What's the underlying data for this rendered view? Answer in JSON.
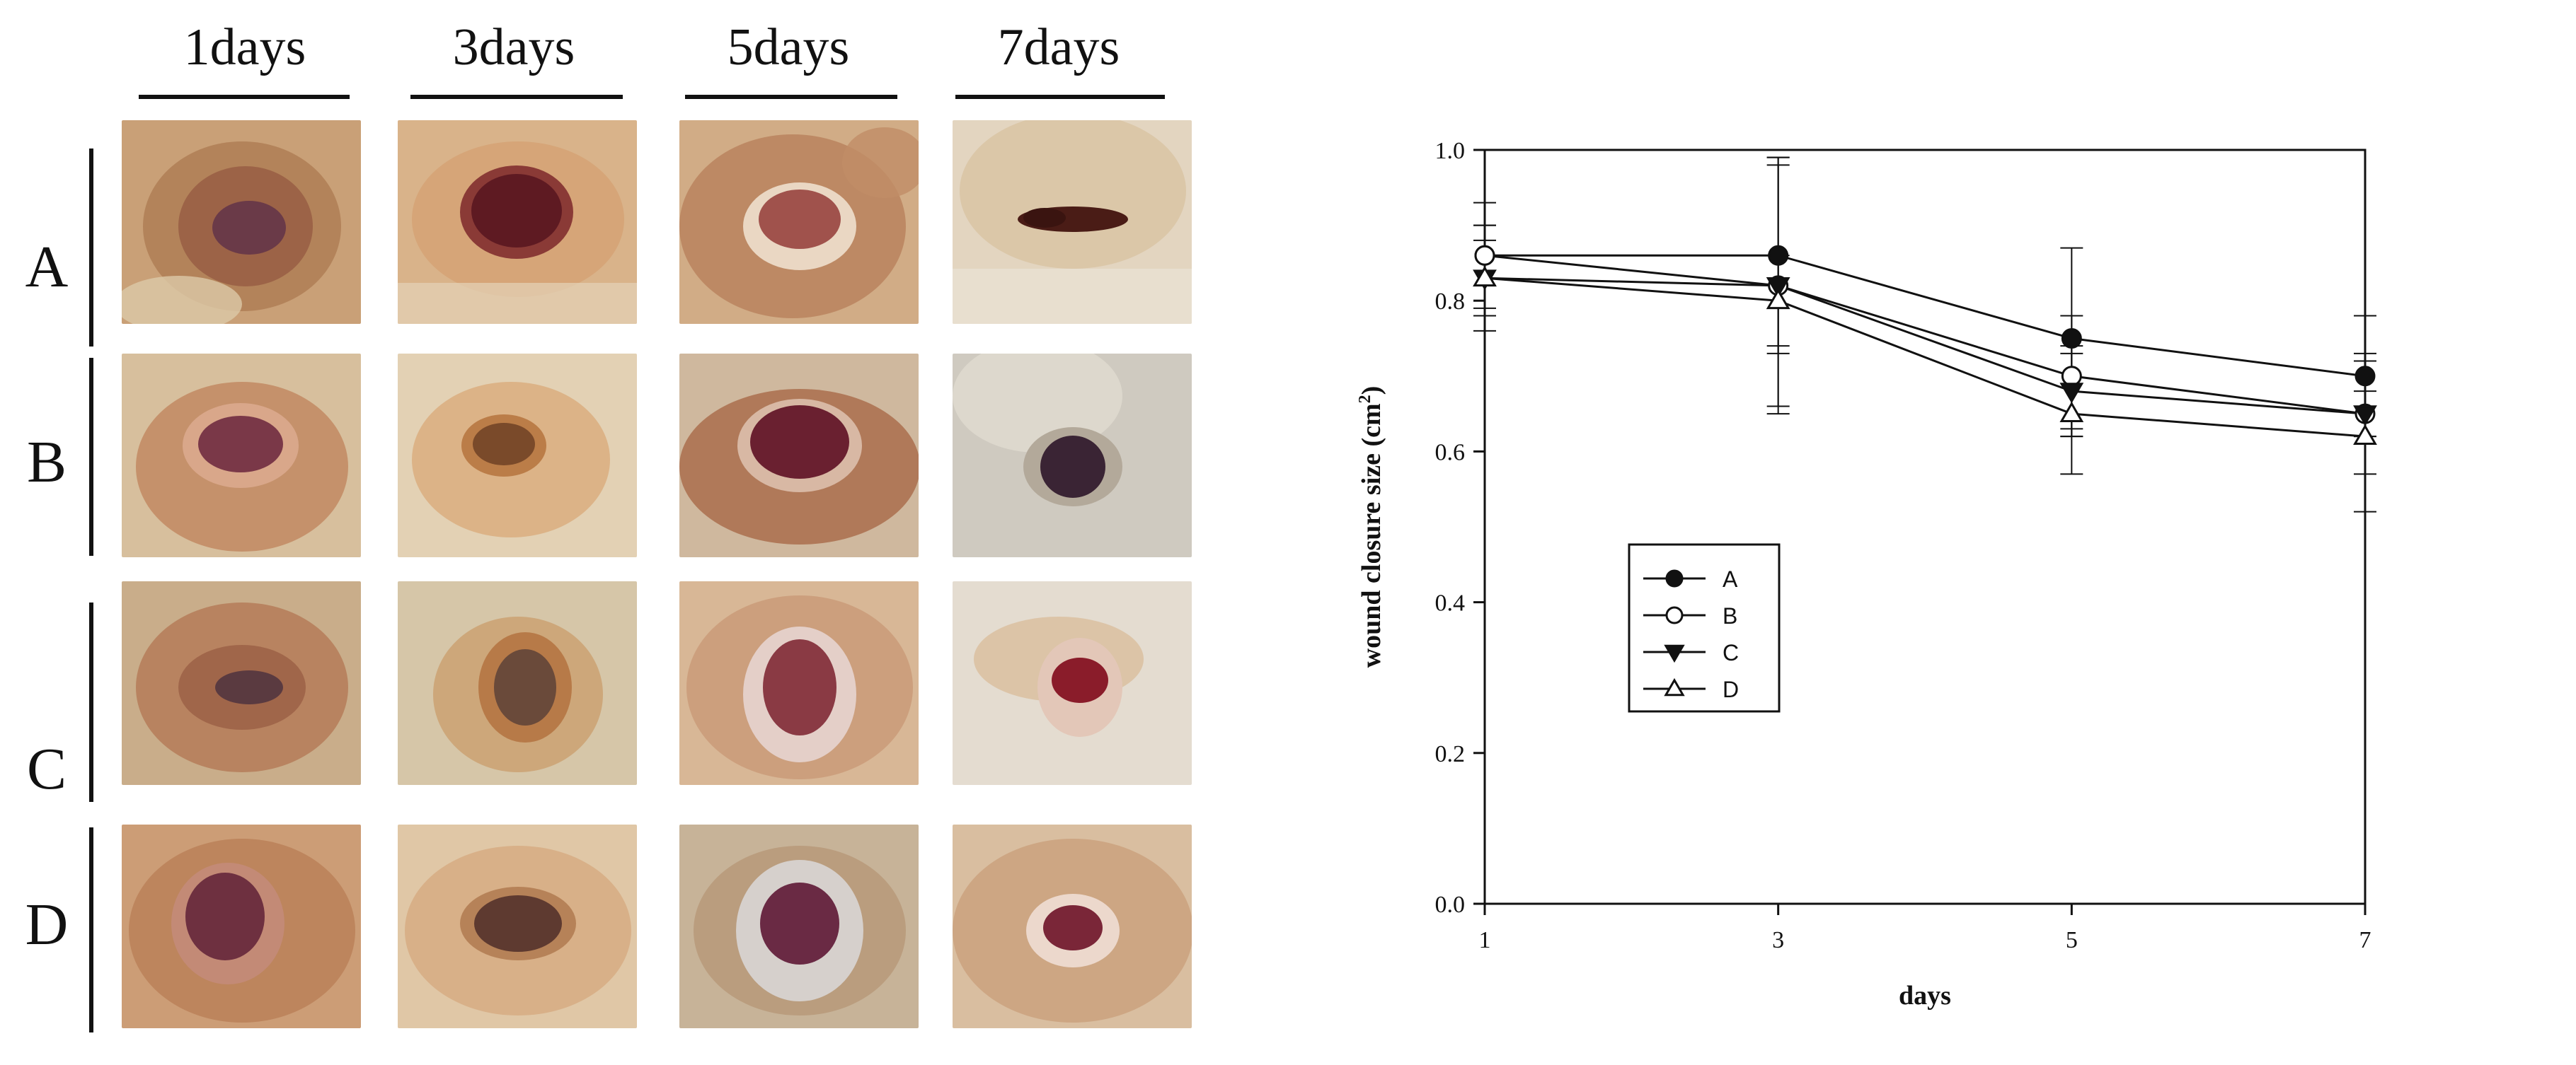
{
  "photo_grid": {
    "column_headers": [
      "1days",
      "3days",
      "5days",
      "7days"
    ],
    "row_labels": [
      "A",
      "B",
      "C",
      "D"
    ]
  },
  "chart_data": {
    "type": "line",
    "x": [
      1,
      3,
      5,
      7
    ],
    "xticks": [
      "1",
      "3",
      "5",
      "7"
    ],
    "xlim": [
      1,
      7
    ],
    "ylim": [
      0,
      1
    ],
    "yticks": [
      "0.0",
      "0.2",
      "0.4",
      "0.6",
      "0.8",
      "1.0"
    ],
    "ytick_values": [
      0.0,
      0.2,
      0.4,
      0.6,
      0.8,
      1.0
    ],
    "xlabel": "days",
    "ylabel": "wound closure size (cm",
    "ylabel_superscript": "2",
    "ylabel_suffix": ")",
    "grid": false,
    "legend_placement": "center-left",
    "series": [
      {
        "name": "A",
        "marker": "filled-circle",
        "values": [
          0.86,
          0.86,
          0.75,
          0.7
        ],
        "errors": [
          0.07,
          0.13,
          0.12,
          0.08
        ]
      },
      {
        "name": "B",
        "marker": "open-circle",
        "values": [
          0.86,
          0.82,
          0.7,
          0.65
        ],
        "errors": [
          0.04,
          0.17,
          0.08,
          0.03
        ]
      },
      {
        "name": "C",
        "marker": "filled-triangle-down",
        "values": [
          0.83,
          0.82,
          0.68,
          0.65
        ],
        "errors": [
          0.05,
          0.16,
          0.06,
          0.08
        ]
      },
      {
        "name": "D",
        "marker": "open-triangle-up",
        "values": [
          0.83,
          0.8,
          0.65,
          0.62
        ],
        "errors": [
          0.07,
          0.06,
          0.08,
          0.1
        ]
      }
    ]
  }
}
